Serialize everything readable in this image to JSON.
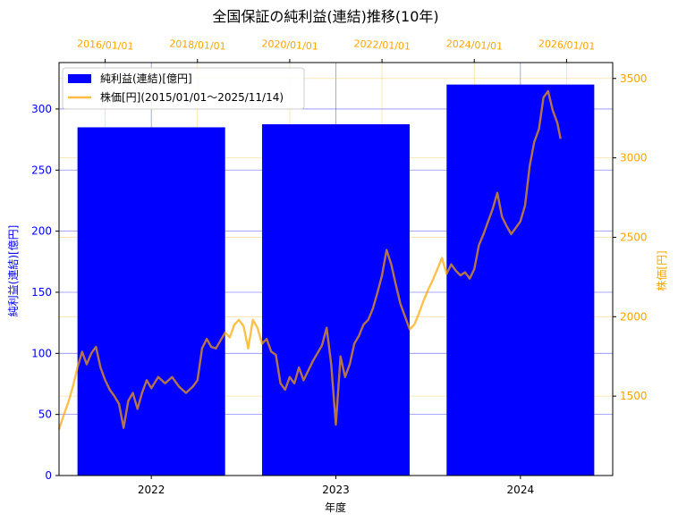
{
  "chart_data": {
    "type": "bar+line",
    "title": "全国保証の純利益(連結)推移(10年)",
    "xlabel": "年度",
    "ylabel_left": "純利益(連結)[億円]",
    "ylabel_right": "株価[円]",
    "categories": [
      "2022",
      "2023",
      "2024"
    ],
    "bar_series": {
      "name": "純利益(連結)[億円]",
      "color": "#0000ff",
      "values": [
        285,
        287.5,
        320
      ]
    },
    "left_ylim": [
      0,
      338
    ],
    "left_ticks": [
      0,
      50,
      100,
      150,
      200,
      250,
      300
    ],
    "right_ylim": [
      1000,
      3600
    ],
    "right_ticks": [
      1500,
      2000,
      2500,
      3000,
      3500
    ],
    "top_axis": {
      "color": "#ffa500",
      "range_years": [
        2015.0,
        2027.0
      ],
      "ticks": [
        {
          "label": "2016/01/01",
          "year": 2016
        },
        {
          "label": "2018/01/01",
          "year": 2018
        },
        {
          "label": "2020/01/01",
          "year": 2020
        },
        {
          "label": "2022/01/01",
          "year": 2022
        },
        {
          "label": "2024/01/01",
          "year": 2024
        },
        {
          "label": "2026/01/01",
          "year": 2026
        }
      ]
    },
    "line_series": {
      "name": "株価[円](2015/01/01～2025/11/14)",
      "color": "#ffa500",
      "points": [
        [
          2015.0,
          1290
        ],
        [
          2015.1,
          1380
        ],
        [
          2015.2,
          1460
        ],
        [
          2015.3,
          1560
        ],
        [
          2015.4,
          1680
        ],
        [
          2015.5,
          1780
        ],
        [
          2015.6,
          1700
        ],
        [
          2015.7,
          1770
        ],
        [
          2015.8,
          1810
        ],
        [
          2015.9,
          1680
        ],
        [
          2016.0,
          1600
        ],
        [
          2016.1,
          1540
        ],
        [
          2016.2,
          1500
        ],
        [
          2016.3,
          1450
        ],
        [
          2016.4,
          1300
        ],
        [
          2016.5,
          1470
        ],
        [
          2016.6,
          1520
        ],
        [
          2016.7,
          1420
        ],
        [
          2016.8,
          1520
        ],
        [
          2016.9,
          1600
        ],
        [
          2017.0,
          1550
        ],
        [
          2017.15,
          1620
        ],
        [
          2017.3,
          1580
        ],
        [
          2017.45,
          1620
        ],
        [
          2017.6,
          1560
        ],
        [
          2017.75,
          1520
        ],
        [
          2017.9,
          1560
        ],
        [
          2018.0,
          1600
        ],
        [
          2018.1,
          1800
        ],
        [
          2018.2,
          1860
        ],
        [
          2018.3,
          1810
        ],
        [
          2018.4,
          1800
        ],
        [
          2018.5,
          1850
        ],
        [
          2018.6,
          1900
        ],
        [
          2018.7,
          1870
        ],
        [
          2018.8,
          1950
        ],
        [
          2018.9,
          1980
        ],
        [
          2019.0,
          1940
        ],
        [
          2019.1,
          1800
        ],
        [
          2019.2,
          1980
        ],
        [
          2019.3,
          1930
        ],
        [
          2019.4,
          1830
        ],
        [
          2019.5,
          1860
        ],
        [
          2019.6,
          1780
        ],
        [
          2019.7,
          1760
        ],
        [
          2019.8,
          1580
        ],
        [
          2019.9,
          1540
        ],
        [
          2020.0,
          1620
        ],
        [
          2020.1,
          1580
        ],
        [
          2020.2,
          1680
        ],
        [
          2020.3,
          1600
        ],
        [
          2020.4,
          1660
        ],
        [
          2020.5,
          1720
        ],
        [
          2020.6,
          1770
        ],
        [
          2020.7,
          1820
        ],
        [
          2020.8,
          1930
        ],
        [
          2020.9,
          1700
        ],
        [
          2021.0,
          1320
        ],
        [
          2021.1,
          1750
        ],
        [
          2021.2,
          1620
        ],
        [
          2021.3,
          1700
        ],
        [
          2021.4,
          1830
        ],
        [
          2021.5,
          1880
        ],
        [
          2021.6,
          1950
        ],
        [
          2021.7,
          1980
        ],
        [
          2021.8,
          2050
        ],
        [
          2021.9,
          2150
        ],
        [
          2022.0,
          2260
        ],
        [
          2022.1,
          2420
        ],
        [
          2022.2,
          2330
        ],
        [
          2022.3,
          2200
        ],
        [
          2022.4,
          2080
        ],
        [
          2022.5,
          2000
        ],
        [
          2022.6,
          1920
        ],
        [
          2022.7,
          1950
        ],
        [
          2022.8,
          2020
        ],
        [
          2022.9,
          2100
        ],
        [
          2023.0,
          2170
        ],
        [
          2023.1,
          2230
        ],
        [
          2023.2,
          2300
        ],
        [
          2023.3,
          2370
        ],
        [
          2023.4,
          2270
        ],
        [
          2023.5,
          2330
        ],
        [
          2023.6,
          2290
        ],
        [
          2023.7,
          2260
        ],
        [
          2023.8,
          2280
        ],
        [
          2023.9,
          2240
        ],
        [
          2024.0,
          2300
        ],
        [
          2024.1,
          2450
        ],
        [
          2024.2,
          2520
        ],
        [
          2024.3,
          2600
        ],
        [
          2024.4,
          2680
        ],
        [
          2024.5,
          2780
        ],
        [
          2024.6,
          2630
        ],
        [
          2024.7,
          2570
        ],
        [
          2024.8,
          2520
        ],
        [
          2024.9,
          2560
        ],
        [
          2025.0,
          2600
        ],
        [
          2025.1,
          2700
        ],
        [
          2025.2,
          2950
        ],
        [
          2025.3,
          3100
        ],
        [
          2025.4,
          3180
        ],
        [
          2025.5,
          3380
        ],
        [
          2025.6,
          3420
        ],
        [
          2025.7,
          3300
        ],
        [
          2025.8,
          3220
        ],
        [
          2025.87,
          3120
        ]
      ]
    },
    "legend": {
      "location": "upper-left",
      "entries": [
        "純利益(連結)[億円]",
        "株価[円](2015/01/01～2025/11/14)"
      ]
    },
    "grid": true
  }
}
